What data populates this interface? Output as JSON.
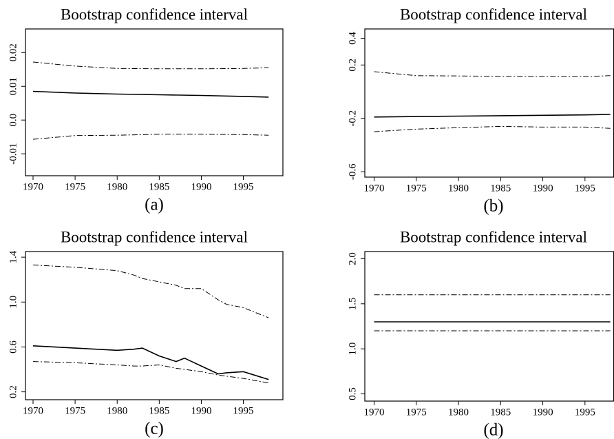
{
  "chart_data": [
    {
      "type": "line",
      "title": "Bootstrap confidence interval",
      "caption": "(a)",
      "x": [
        1970,
        1975,
        1980,
        1985,
        1990,
        1995,
        1998
      ],
      "series": [
        {
          "color": "#000000",
          "style": "solid",
          "values": [
            0.0085,
            0.008,
            0.0077,
            0.0075,
            0.0073,
            0.007,
            0.0068
          ]
        },
        {
          "color": "#000000",
          "style": "dashdot",
          "values": [
            0.0172,
            0.016,
            0.0153,
            0.0152,
            0.0152,
            0.0153,
            0.0155
          ]
        },
        {
          "color": "#000000",
          "style": "dashdot",
          "values": [
            -0.0057,
            -0.0046,
            -0.0045,
            -0.0042,
            -0.0042,
            -0.0043,
            -0.0045
          ]
        }
      ],
      "xlim": [
        1969.1,
        1999.7
      ],
      "xticks": [
        1970,
        1975,
        1980,
        1985,
        1990,
        1995
      ],
      "ylim": [
        -0.0165,
        0.027
      ],
      "yticks": [
        -0.01,
        {
          "value": 0,
          "label": "0.0"
        },
        0.01,
        0.02
      ]
    },
    {
      "type": "line",
      "title": "Bootstrap confidence interval",
      "caption": "(b)",
      "x": [
        1970,
        1975,
        1980,
        1985,
        1990,
        1995,
        1998
      ],
      "series": [
        {
          "color": "#000000",
          "style": "solid",
          "values": [
            -0.19,
            -0.186,
            -0.183,
            -0.18,
            -0.177,
            -0.174,
            -0.17
          ]
        },
        {
          "color": "#000000",
          "style": "dashdot",
          "values": [
            0.15,
            0.12,
            0.118,
            0.115,
            0.113,
            0.113,
            0.12
          ]
        },
        {
          "color": "#000000",
          "style": "dashdot",
          "values": [
            -0.3,
            -0.28,
            -0.27,
            -0.26,
            -0.265,
            -0.265,
            -0.275
          ]
        }
      ],
      "xlim": [
        1968.9,
        1998.4
      ],
      "xticks": [
        1970,
        1975,
        1980,
        1985,
        1990,
        1995
      ],
      "ylim": [
        -0.64,
        0.47
      ],
      "yticks": [
        -0.6,
        -0.2,
        0.2,
        0.4
      ]
    },
    {
      "type": "line",
      "title": "Bootstrap confidence interval",
      "caption": "(c)",
      "x": [
        1970,
        1975,
        1980,
        1982,
        1983,
        1985,
        1987,
        1988,
        1990,
        1992,
        1993,
        1995,
        1998
      ],
      "series": [
        {
          "color": "#000000",
          "style": "solid",
          "values": [
            0.61,
            0.59,
            0.57,
            0.58,
            0.59,
            0.52,
            0.47,
            0.5,
            0.43,
            0.36,
            0.37,
            0.38,
            0.31
          ]
        },
        {
          "color": "#000000",
          "style": "dashdot",
          "values": [
            1.33,
            1.31,
            1.28,
            1.24,
            1.21,
            1.18,
            1.15,
            1.12,
            1.12,
            1.02,
            0.98,
            0.95,
            0.86
          ]
        },
        {
          "color": "#000000",
          "style": "dashdot",
          "values": [
            0.47,
            0.46,
            0.44,
            0.43,
            0.43,
            0.44,
            0.41,
            0.4,
            0.38,
            0.35,
            0.34,
            0.32,
            0.28
          ]
        }
      ],
      "xlim": [
        1969.1,
        1999.7
      ],
      "xticks": [
        1970,
        1975,
        1980,
        1985,
        1990,
        1995
      ],
      "ylim": [
        0.13,
        1.45
      ],
      "yticks": [
        0.2,
        0.6,
        {
          "value": 1,
          "label": "1.0"
        },
        1.4
      ]
    },
    {
      "type": "line",
      "title": "Bootstrap confidence interval",
      "caption": "(d)",
      "x": [
        1970,
        1998
      ],
      "series": [
        {
          "color": "#000000",
          "style": "solid",
          "values": [
            1.3,
            1.3
          ]
        },
        {
          "color": "#000000",
          "style": "dashdot",
          "values": [
            1.6,
            1.6
          ]
        },
        {
          "color": "#000000",
          "style": "dashdot",
          "values": [
            1.2,
            1.2
          ]
        }
      ],
      "xlim": [
        1968.9,
        1998.4
      ],
      "xticks": [
        1970,
        1975,
        1980,
        1985,
        1990,
        1995
      ],
      "ylim": [
        0.42,
        2.08
      ],
      "yticks": [
        0.5,
        {
          "value": 1,
          "label": "1.0"
        },
        1.5,
        {
          "value": 2,
          "label": "2.0"
        }
      ]
    }
  ]
}
